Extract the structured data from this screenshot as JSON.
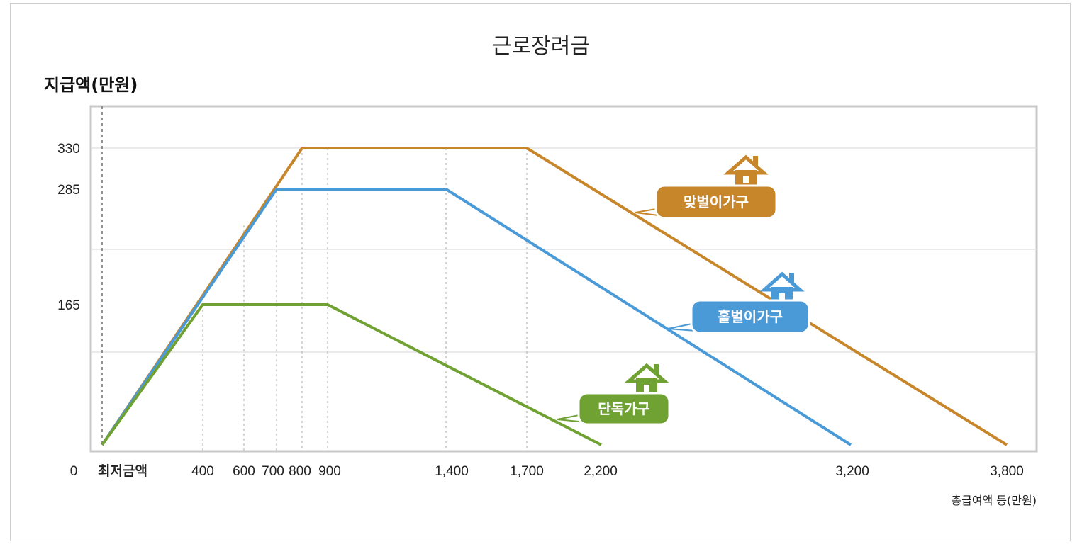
{
  "chart_data": {
    "type": "line",
    "title": "근로장려금",
    "ylabel": "지급액(만원)",
    "xlabel": "총급여액 등(만원)",
    "x_tick_labels": [
      "0",
      "최저금액",
      "400",
      "600",
      "700",
      "800",
      "900",
      "1,400",
      "1,700",
      "2,200",
      "3,200",
      "3,800"
    ],
    "y_tick_labels": [
      "330",
      "285",
      "165"
    ],
    "series": [
      {
        "name": "맞벌이가구",
        "color": "#c8862b",
        "points": [
          [
            0,
            0
          ],
          [
            800,
            330
          ],
          [
            1700,
            330
          ],
          [
            3800,
            0
          ]
        ]
      },
      {
        "name": "홑벌이가구",
        "color": "#4a9ad8",
        "points": [
          [
            0,
            0
          ],
          [
            700,
            285
          ],
          [
            1400,
            285
          ],
          [
            3200,
            0
          ]
        ]
      },
      {
        "name": "단독가구",
        "color": "#6fa232",
        "points": [
          [
            0,
            0
          ],
          [
            400,
            165
          ],
          [
            900,
            165
          ],
          [
            2200,
            0
          ]
        ]
      }
    ],
    "ylim": [
      0,
      330
    ],
    "grid": true,
    "legend": "inline labels with house icons"
  }
}
